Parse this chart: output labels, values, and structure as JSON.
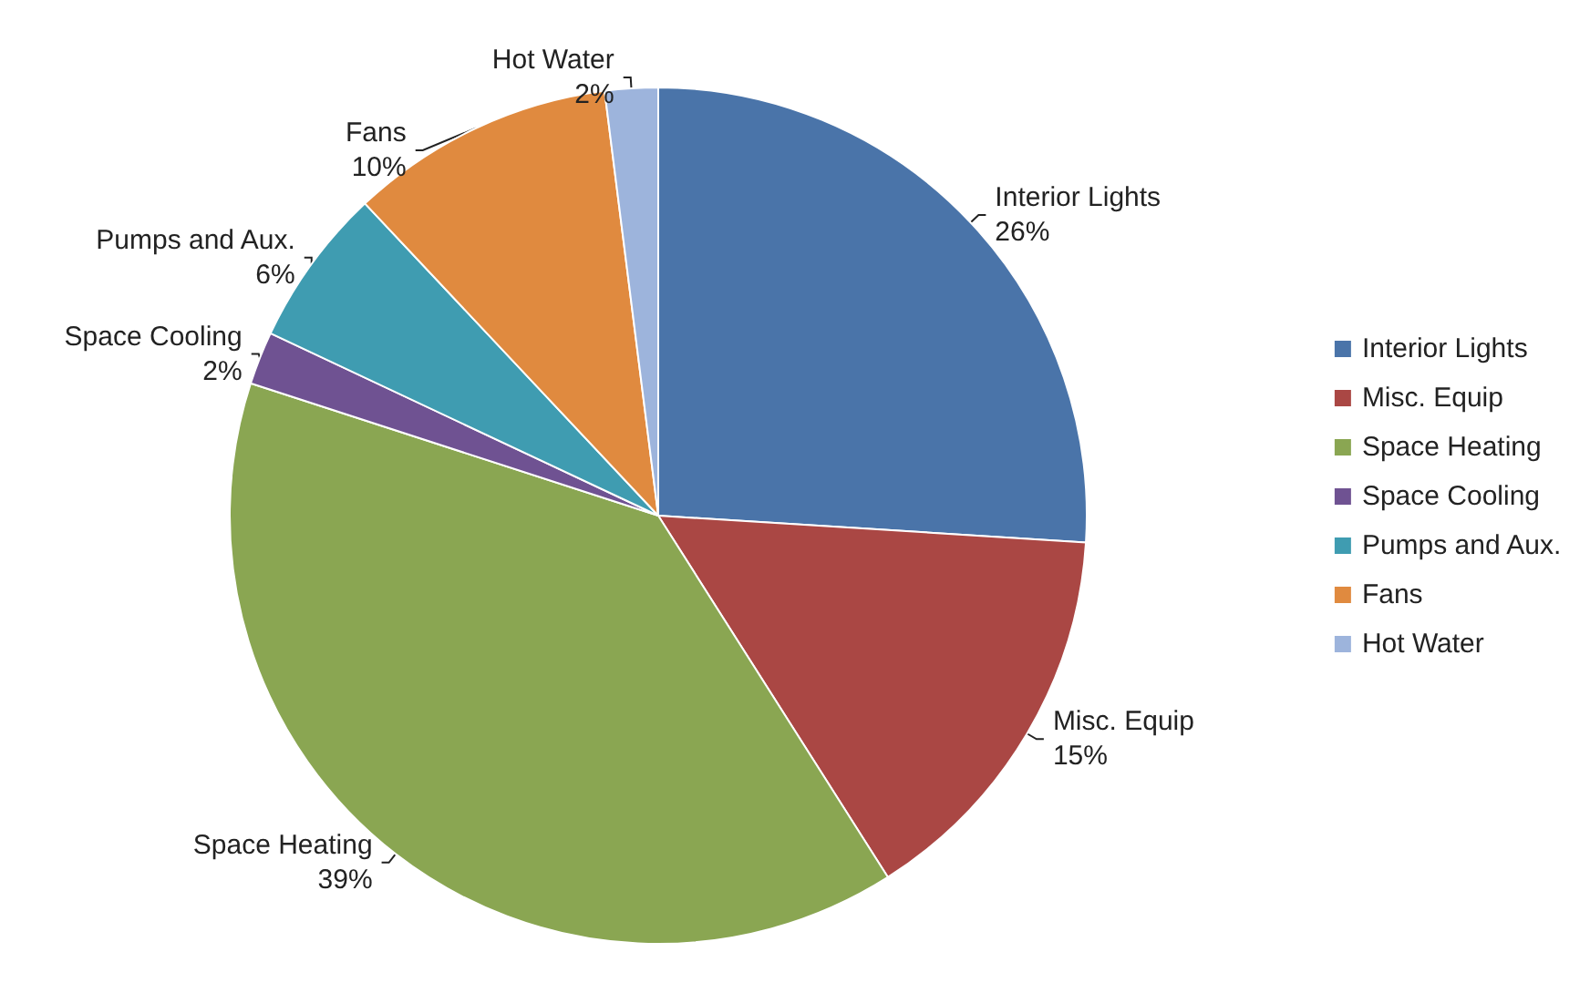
{
  "chart_data": {
    "type": "pie",
    "categories": [
      "Interior Lights",
      "Misc. Equip",
      "Space Heating",
      "Space Cooling",
      "Pumps and Aux.",
      "Fans",
      "Hot Water"
    ],
    "values": [
      26,
      15,
      39,
      2,
      6,
      10,
      2
    ],
    "value_labels": [
      "26%",
      "15%",
      "39%",
      "2%",
      "6%",
      "10%",
      "2%"
    ],
    "colors": [
      "#4a74a9",
      "#aa4744",
      "#8aa652",
      "#6f5292",
      "#3f9cb1",
      "#e08a3f",
      "#9db4dc"
    ],
    "legend": "right"
  }
}
